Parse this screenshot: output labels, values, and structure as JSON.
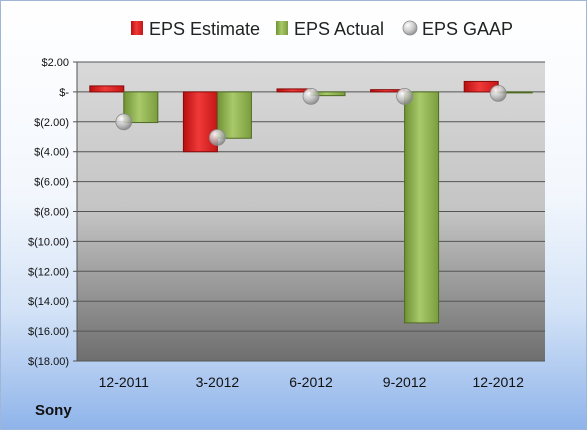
{
  "company": "Sony",
  "colors": {
    "estimate": "#e02020",
    "actual": "#8fb44a",
    "gaap": "#b8b8b8"
  },
  "chart_data": {
    "type": "bar",
    "title": "",
    "xlabel": "",
    "ylabel": "",
    "categories": [
      "12-2011",
      "3-2012",
      "6-2012",
      "9-2012",
      "12-2012"
    ],
    "ylim": [
      -18,
      2
    ],
    "yticks": [
      2,
      0,
      -2,
      -4,
      -6,
      -8,
      -10,
      -12,
      -14,
      -16,
      -18
    ],
    "ytick_labels": [
      "$2.00",
      "$-",
      "$(2.00)",
      "$(4.00)",
      "$(6.00)",
      "$(8.00)",
      "$(10.00)",
      "$(12.00)",
      "$(14.00)",
      "$(16.00)",
      "$(18.00)"
    ],
    "grid": true,
    "legend_position": "top",
    "series": [
      {
        "name": "EPS Estimate",
        "type": "bar",
        "values": [
          0.4,
          -4.0,
          0.2,
          0.15,
          0.7
        ]
      },
      {
        "name": "EPS Actual",
        "type": "bar",
        "values": [
          -2.05,
          -3.1,
          -0.25,
          -15.45,
          -0.05
        ]
      },
      {
        "name": "EPS GAAP",
        "type": "scatter",
        "values": [
          -2.0,
          -3.05,
          -0.3,
          -0.3,
          -0.1
        ]
      }
    ]
  }
}
